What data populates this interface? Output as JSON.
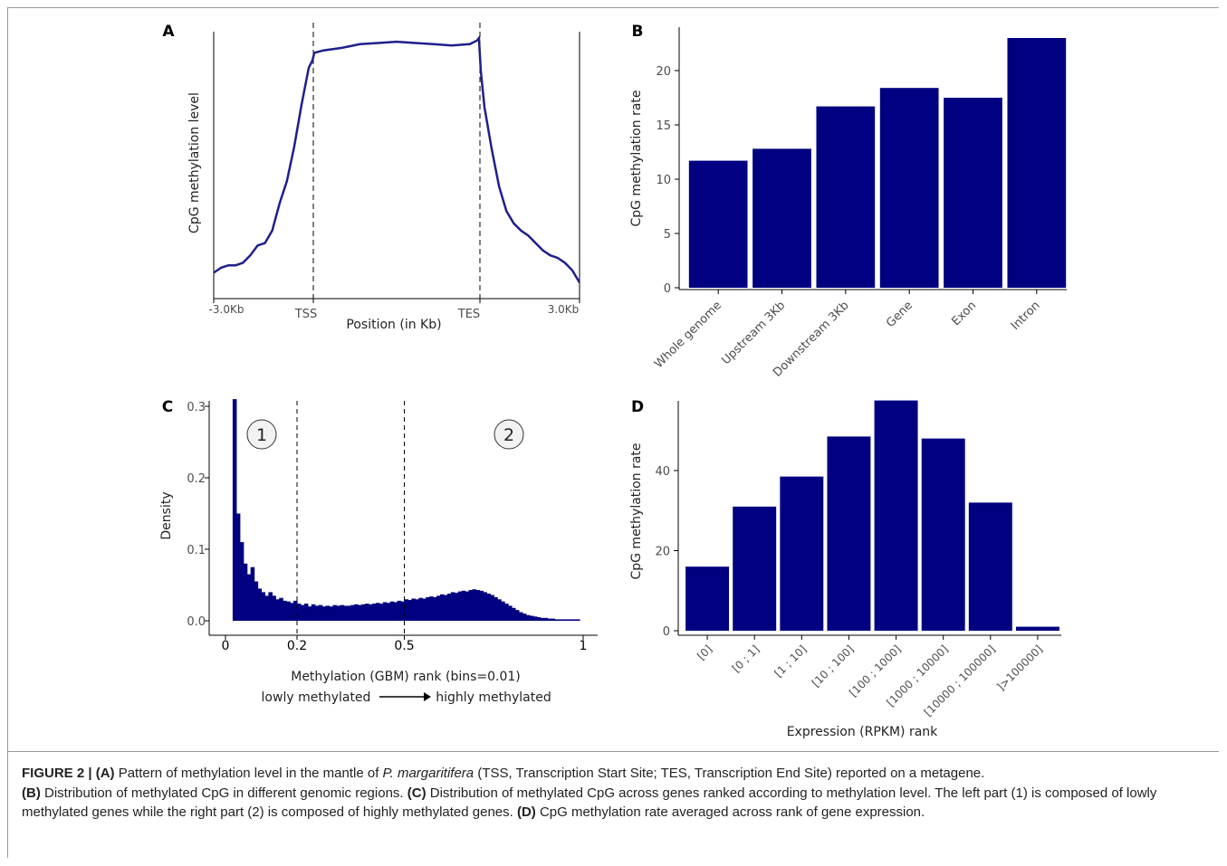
{
  "colors": {
    "bar": "#000080",
    "line": "#1f1f8c",
    "axis": "#000000",
    "tick_label": "#4d4d4d"
  },
  "chart_data": [
    {
      "panel": "A",
      "type": "line",
      "xlabel": "Position (in Kb)",
      "ylabel": "CpG methylation level",
      "x_tick_labels": [
        "-3.0Kb",
        "TSS",
        "TES",
        "3.0Kb"
      ],
      "vlines": [
        "TSS",
        "TES"
      ],
      "x": [
        0,
        0.02,
        0.04,
        0.06,
        0.08,
        0.1,
        0.12,
        0.14,
        0.16,
        0.18,
        0.2,
        0.22,
        0.24,
        0.26,
        0.27,
        0.275,
        0.3,
        0.35,
        0.4,
        0.45,
        0.5,
        0.55,
        0.6,
        0.65,
        0.7,
        0.72,
        0.725,
        0.73,
        0.74,
        0.76,
        0.78,
        0.8,
        0.82,
        0.84,
        0.86,
        0.88,
        0.9,
        0.92,
        0.94,
        0.96,
        0.98,
        1.0
      ],
      "y": [
        0.05,
        0.07,
        0.08,
        0.08,
        0.09,
        0.12,
        0.16,
        0.17,
        0.22,
        0.33,
        0.42,
        0.56,
        0.73,
        0.88,
        0.91,
        0.94,
        0.95,
        0.96,
        0.975,
        0.98,
        0.985,
        0.98,
        0.975,
        0.97,
        0.975,
        0.99,
        1.0,
        0.87,
        0.72,
        0.55,
        0.4,
        0.3,
        0.25,
        0.22,
        0.2,
        0.17,
        0.14,
        0.12,
        0.11,
        0.09,
        0.06,
        0.01
      ]
    },
    {
      "panel": "B",
      "type": "bar",
      "categories": [
        "Whole genome",
        "Upstream 3Kb",
        "Downstream 3Kb",
        "Gene",
        "Exon",
        "Intron"
      ],
      "values": [
        11.7,
        12.8,
        16.7,
        18.4,
        17.5,
        23.0
      ],
      "ylabel": "CpG methylation rate",
      "xlabel": "",
      "y_ticks": [
        0,
        5,
        10,
        15,
        20
      ],
      "ylim": [
        0,
        24
      ]
    },
    {
      "panel": "C",
      "type": "bar",
      "xlabel": "Methylation (GBM) rank (bins=0.01)",
      "xlabel_note": "lowly methylated → highly methylated",
      "ylabel": "Density",
      "x_ticks": [
        0,
        0.2,
        0.5,
        1
      ],
      "x_tick_labels": [
        "0",
        "0.2",
        "0.5",
        "1"
      ],
      "y_ticks": [
        0.0,
        0.1,
        0.2,
        0.3
      ],
      "y_tick_labels": [
        "0.0",
        "0.1",
        "0.2",
        "0.3"
      ],
      "vlines": [
        0.2,
        0.5
      ],
      "region_labels": [
        "1",
        "2"
      ],
      "bin_width": 0.01,
      "bins_start": [
        0.02,
        0.03,
        0.04,
        0.05,
        0.06,
        0.07,
        0.08,
        0.09,
        0.1,
        0.11,
        0.12,
        0.13,
        0.14,
        0.15,
        0.16,
        0.17,
        0.18,
        0.19,
        0.2,
        0.21,
        0.22,
        0.23,
        0.24,
        0.25,
        0.26,
        0.27,
        0.28,
        0.29,
        0.3,
        0.31,
        0.32,
        0.33,
        0.34,
        0.35,
        0.36,
        0.37,
        0.38,
        0.39,
        0.4,
        0.41,
        0.42,
        0.43,
        0.44,
        0.45,
        0.46,
        0.47,
        0.48,
        0.49,
        0.5,
        0.51,
        0.52,
        0.53,
        0.54,
        0.55,
        0.56,
        0.57,
        0.58,
        0.59,
        0.6,
        0.61,
        0.62,
        0.63,
        0.64,
        0.65,
        0.66,
        0.67,
        0.68,
        0.69,
        0.7,
        0.71,
        0.72,
        0.73,
        0.74,
        0.75,
        0.76,
        0.77,
        0.78,
        0.79,
        0.8,
        0.81,
        0.82,
        0.83,
        0.84,
        0.85,
        0.86,
        0.87,
        0.88,
        0.89,
        0.9,
        0.91,
        0.92,
        0.93,
        0.94,
        0.95,
        0.96,
        0.97,
        0.98
      ],
      "values": [
        0.31,
        0.15,
        0.11,
        0.08,
        0.065,
        0.075,
        0.055,
        0.045,
        0.04,
        0.035,
        0.04,
        0.035,
        0.03,
        0.032,
        0.028,
        0.027,
        0.025,
        0.028,
        0.024,
        0.022,
        0.024,
        0.02,
        0.023,
        0.021,
        0.022,
        0.02,
        0.021,
        0.02,
        0.022,
        0.021,
        0.022,
        0.021,
        0.021,
        0.022,
        0.023,
        0.022,
        0.023,
        0.024,
        0.023,
        0.024,
        0.025,
        0.024,
        0.026,
        0.025,
        0.027,
        0.026,
        0.028,
        0.027,
        0.03,
        0.029,
        0.031,
        0.03,
        0.032,
        0.031,
        0.033,
        0.034,
        0.033,
        0.035,
        0.037,
        0.036,
        0.038,
        0.04,
        0.039,
        0.041,
        0.042,
        0.041,
        0.043,
        0.044,
        0.043,
        0.042,
        0.04,
        0.038,
        0.036,
        0.033,
        0.03,
        0.027,
        0.024,
        0.021,
        0.018,
        0.015,
        0.012,
        0.01,
        0.008,
        0.007,
        0.006,
        0.005,
        0.004,
        0.004,
        0.003,
        0.003,
        0.002,
        0.002,
        0.002,
        0.002,
        0.002,
        0.002,
        0.002
      ],
      "ylim": [
        0,
        0.31
      ]
    },
    {
      "panel": "D",
      "type": "bar",
      "categories": [
        "[0]",
        "[0 ; 1]",
        "[1 ; 10]",
        "[10 ; 100]",
        "[100 ; 1000]",
        "[1000 ; 10000]",
        "[10000 ; 100000]",
        "]>100000]"
      ],
      "values": [
        16,
        31,
        38.5,
        48.5,
        57.5,
        48,
        32,
        1
      ],
      "ylabel": "CpG methylation rate",
      "xlabel": "Expression (RPKM) rank",
      "y_ticks": [
        0,
        20,
        40
      ],
      "ylim": [
        0,
        57.5
      ]
    }
  ],
  "caption": {
    "label": "FIGURE 2 |",
    "parts": [
      {
        "k": "(A)",
        "t": " Pattern of methylation level in the mantle of "
      },
      {
        "i": "P. margaritifera"
      },
      {
        "t": " (TSS, Transcription Start Site; TES, Transcription End Site) reported on a metagene."
      },
      {
        "br": true
      },
      {
        "k": "(B)",
        "t": " Distribution of methylated CpG in different genomic regions. "
      },
      {
        "k": "(C)",
        "t": " Distribution of methylated CpG across genes ranked according to methylation level. The left part (1) is composed of lowly methylated genes while the right part (2) is composed of highly methylated genes. "
      },
      {
        "k": "(D)",
        "t": " CpG methylation rate averaged across rank of gene expression."
      }
    ]
  }
}
